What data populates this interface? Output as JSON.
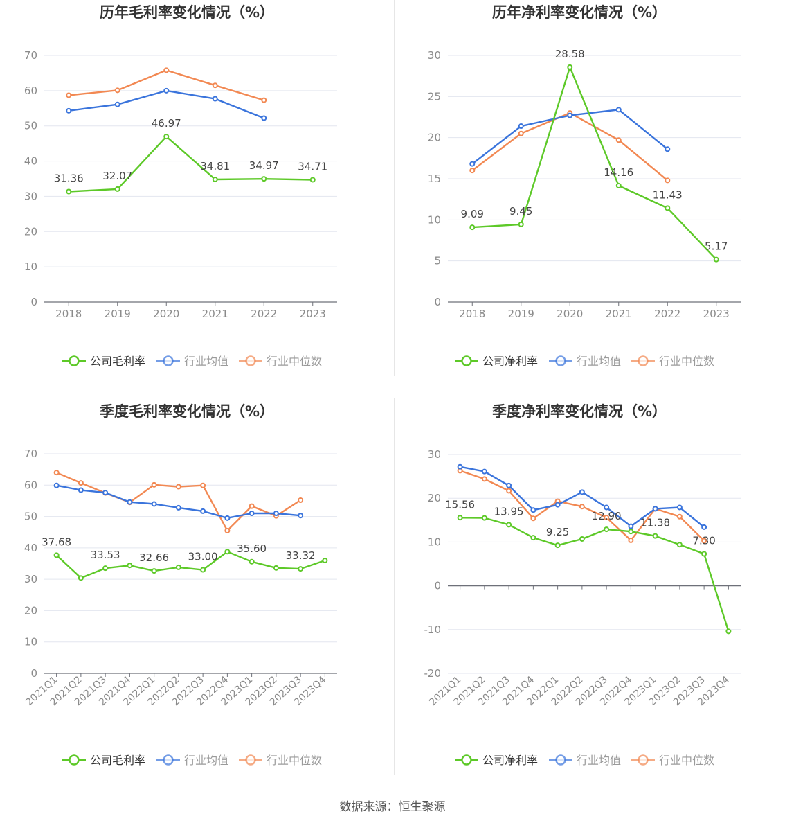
{
  "source": "数据来源：恒生聚源",
  "colors": {
    "company": "#5dc928",
    "average": "#3a74dc",
    "median": "#f28852",
    "grid": "#e3e6ef",
    "axis": "#6e7079",
    "tick": "#8a8a8a",
    "label": "#444444"
  },
  "chart_data": [
    {
      "type": "line",
      "title": "历年毛利率变化情况（%）",
      "categories": [
        "2018",
        "2019",
        "2020",
        "2021",
        "2022",
        "2023"
      ],
      "ylim": [
        0,
        70
      ],
      "yticks": [
        0,
        10,
        20,
        30,
        40,
        50,
        60,
        70
      ],
      "x_label_rotated": false,
      "series": [
        {
          "name": "公司毛利率",
          "role": "company",
          "values": [
            31.36,
            32.07,
            46.97,
            34.81,
            34.97,
            34.71
          ],
          "labels": [
            "31.36",
            "32.07",
            "46.97",
            "34.81",
            "34.97",
            "34.71"
          ]
        },
        {
          "name": "行业均值",
          "role": "average",
          "values": [
            54.3,
            56.1,
            60.0,
            57.7,
            52.2,
            null
          ]
        },
        {
          "name": "行业中位数",
          "role": "median",
          "values": [
            58.7,
            60.1,
            65.8,
            61.5,
            57.3,
            null
          ]
        }
      ]
    },
    {
      "type": "line",
      "title": "历年净利率变化情况（%）",
      "categories": [
        "2018",
        "2019",
        "2020",
        "2021",
        "2022",
        "2023"
      ],
      "ylim": [
        0,
        30
      ],
      "yticks": [
        0,
        5,
        10,
        15,
        20,
        25,
        30
      ],
      "x_label_rotated": false,
      "series": [
        {
          "name": "公司净利率",
          "role": "company",
          "values": [
            9.09,
            9.45,
            28.58,
            14.16,
            11.43,
            5.17
          ],
          "labels": [
            "9.09",
            "9.45",
            "28.58",
            "14.16",
            "11.43",
            "5.17"
          ]
        },
        {
          "name": "行业均值",
          "role": "average",
          "values": [
            16.8,
            21.4,
            22.7,
            23.4,
            18.6,
            null
          ]
        },
        {
          "name": "行业中位数",
          "role": "median",
          "values": [
            16.0,
            20.5,
            23.0,
            19.7,
            14.8,
            null
          ]
        }
      ]
    },
    {
      "type": "line",
      "title": "季度毛利率变化情况（%）",
      "categories": [
        "2021Q1",
        "2021Q2",
        "2021Q3",
        "2021Q4",
        "2022Q1",
        "2022Q2",
        "2022Q3",
        "2022Q4",
        "2023Q1",
        "2023Q2",
        "2023Q3",
        "2023Q4"
      ],
      "ylim": [
        0,
        70
      ],
      "yticks": [
        0,
        10,
        20,
        30,
        40,
        50,
        60,
        70
      ],
      "x_label_rotated": true,
      "series": [
        {
          "name": "公司毛利率",
          "role": "company",
          "values": [
            37.68,
            30.4,
            33.53,
            34.4,
            32.66,
            33.8,
            33.0,
            38.8,
            35.6,
            33.6,
            33.32,
            36.0
          ],
          "labels": [
            "37.68",
            "",
            "33.53",
            "",
            "32.66",
            "",
            "33.00",
            "",
            "35.60",
            "",
            "33.32",
            ""
          ]
        },
        {
          "name": "行业均值",
          "role": "average",
          "values": [
            59.9,
            58.4,
            57.6,
            54.6,
            54.0,
            52.8,
            51.7,
            49.5,
            51.0,
            51.0,
            50.3,
            null
          ]
        },
        {
          "name": "行业中位数",
          "role": "median",
          "values": [
            64.0,
            60.7,
            57.5,
            54.5,
            60.1,
            59.5,
            59.9,
            45.5,
            53.3,
            50.2,
            55.2,
            null
          ]
        }
      ]
    },
    {
      "type": "line",
      "title": "季度净利率变化情况（%）",
      "categories": [
        "2021Q1",
        "2021Q2",
        "2021Q3",
        "2021Q4",
        "2022Q1",
        "2022Q2",
        "2022Q3",
        "2022Q4",
        "2023Q1",
        "2023Q2",
        "2023Q3",
        "2023Q4"
      ],
      "ylim": [
        -20,
        30
      ],
      "yticks": [
        -20,
        -10,
        0,
        10,
        20,
        30
      ],
      "x_label_rotated": true,
      "series": [
        {
          "name": "公司净利率",
          "role": "company",
          "values": [
            15.56,
            15.5,
            13.95,
            11.0,
            9.25,
            10.7,
            12.9,
            12.4,
            11.38,
            9.4,
            7.3,
            -10.4
          ],
          "labels": [
            "15.56",
            "",
            "13.95",
            "",
            "9.25",
            "",
            "12.90",
            "",
            "11.38",
            "",
            "7.30",
            ""
          ]
        },
        {
          "name": "行业均值",
          "role": "average",
          "values": [
            27.2,
            26.1,
            22.9,
            17.3,
            18.5,
            21.4,
            17.9,
            13.6,
            17.6,
            17.9,
            13.4,
            null
          ]
        },
        {
          "name": "行业中位数",
          "role": "median",
          "values": [
            26.3,
            24.4,
            21.7,
            15.4,
            19.3,
            18.1,
            15.6,
            10.4,
            17.6,
            15.8,
            10.3,
            null
          ]
        }
      ]
    }
  ]
}
